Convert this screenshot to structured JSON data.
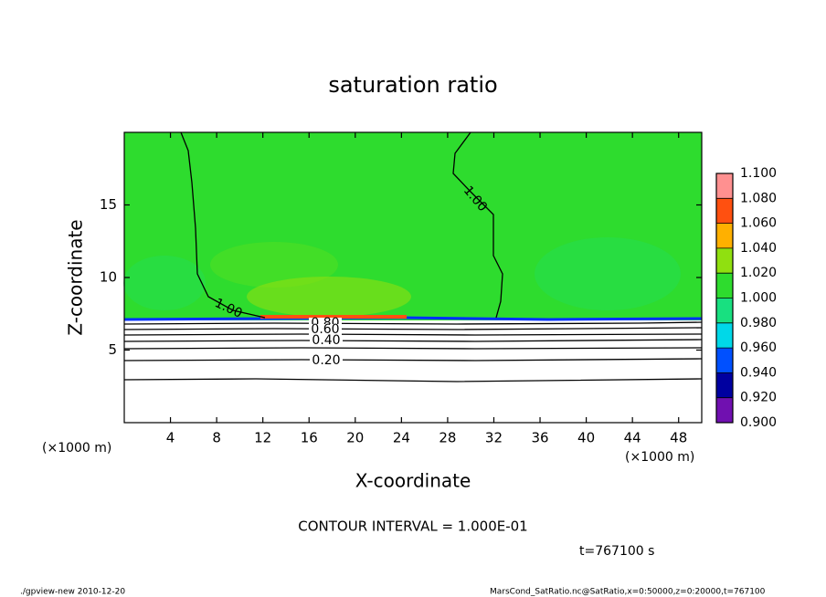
{
  "chart_data": {
    "type": "contour",
    "title": "saturation ratio",
    "x_label": "X-coordinate",
    "y_label": "Z-coordinate",
    "x_unit": "(×1000 m)",
    "y_unit": "(×1000 m)",
    "xlim": [
      0,
      50
    ],
    "xticks": [
      4,
      8,
      12,
      16,
      20,
      24,
      28,
      32,
      36,
      40,
      44,
      48
    ],
    "ylim": [
      0,
      20
    ],
    "yticks": [
      5,
      10,
      15
    ],
    "levels": [
      {
        "value": 0.9,
        "label": "0.900"
      },
      {
        "value": 0.92,
        "label": "0.920"
      },
      {
        "value": 0.94,
        "label": "0.940"
      },
      {
        "value": 0.96,
        "label": "0.960"
      },
      {
        "value": 0.98,
        "label": "0.980"
      },
      {
        "value": 1.0,
        "label": "1.000"
      },
      {
        "value": 1.02,
        "label": "1.020"
      },
      {
        "value": 1.04,
        "label": "1.040"
      },
      {
        "value": 1.06,
        "label": "1.060"
      },
      {
        "value": 1.08,
        "label": "1.080"
      },
      {
        "value": 1.1,
        "label": "1.100"
      }
    ],
    "colors": [
      "#7010b0",
      "#0000a0",
      "#0050ff",
      "#00d8e8",
      "#18e080",
      "#2edc2e",
      "#90e010",
      "#ffb000",
      "#ff5010",
      "#ff9090"
    ],
    "contour_labels": [
      "1.00",
      "1.00",
      "0.80",
      "0.60",
      "0.40",
      "0.20"
    ],
    "contour_interval": "CONTOUR INTERVAL = 1.000E-01",
    "time": "t=767100 s",
    "footer_left": "./gpview-new  2010-12-20",
    "footer_right": "MarsCond_SatRatio.nc@SatRatio,x=0:50000,z=0:20000,t=767100"
  }
}
